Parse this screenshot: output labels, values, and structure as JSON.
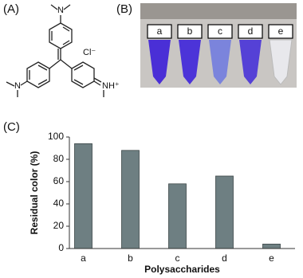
{
  "panel_a": {
    "label": "(A)",
    "counter_ion": "Cl⁻",
    "iminium": "NH⁺",
    "atoms": [
      "N",
      "N"
    ]
  },
  "panel_b": {
    "label": "(B)",
    "tubes": [
      "a",
      "b",
      "c",
      "d",
      "e"
    ]
  },
  "chart_data": {
    "type": "bar",
    "label": "(C)",
    "categories": [
      "a",
      "b",
      "c",
      "d",
      "e"
    ],
    "values": [
      94,
      88,
      58,
      65,
      4
    ],
    "color": "#6e7f82",
    "ylim": [
      0,
      100
    ],
    "yticks": [
      0,
      20,
      40,
      60,
      80,
      100
    ],
    "xlabel": "Polysaccharides",
    "ylabel": "Residual color (%)"
  }
}
